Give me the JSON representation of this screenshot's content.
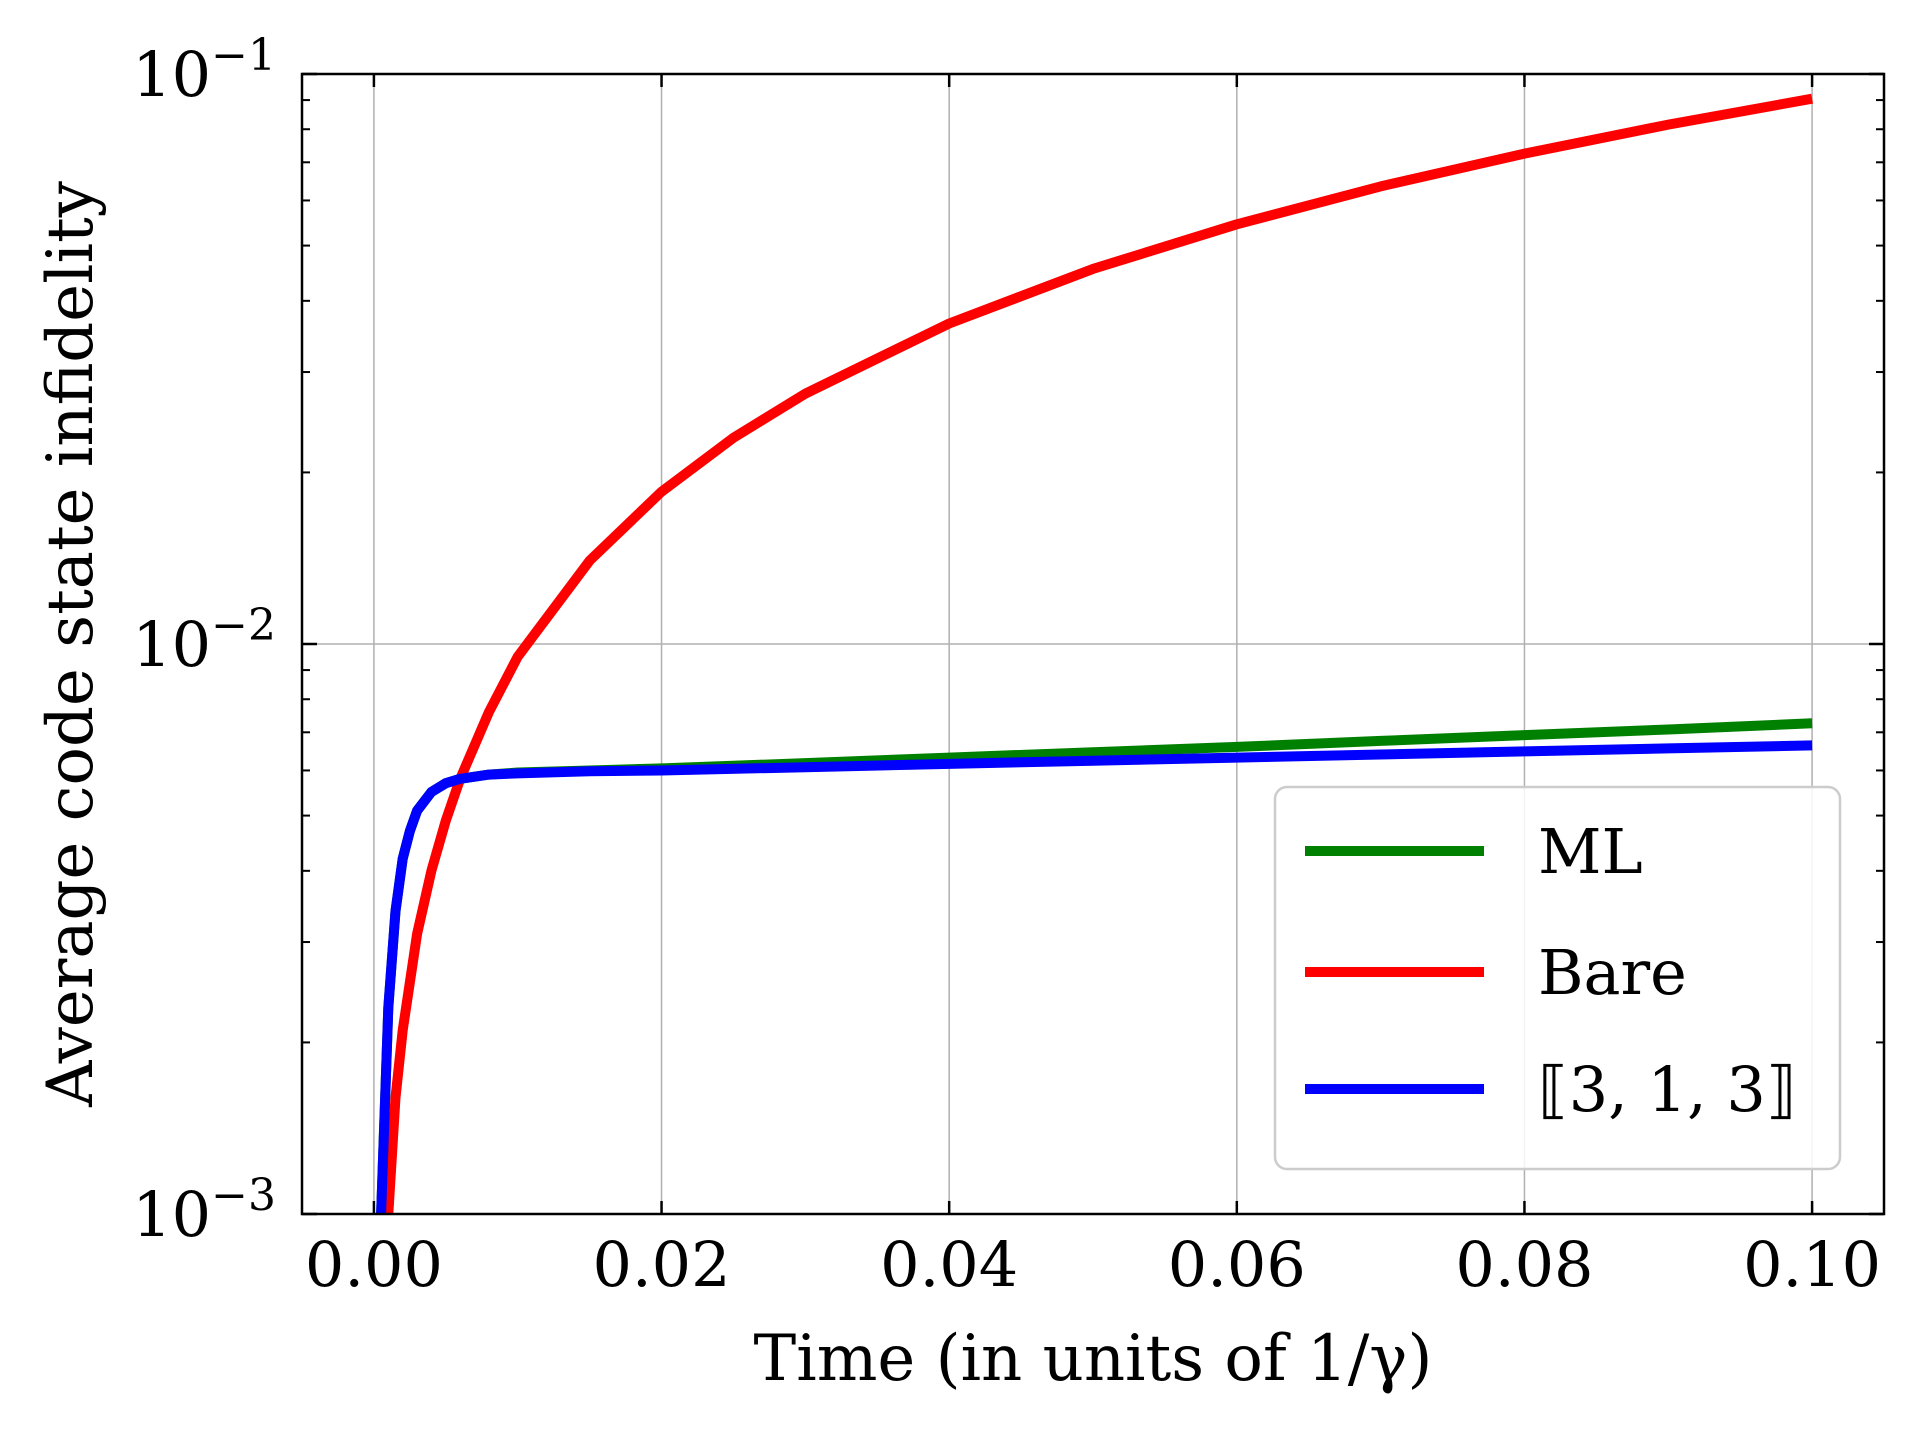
{
  "chart_data": {
    "type": "line",
    "xlabel": "Time (in units of 1/γ)",
    "ylabel": "Average code state infidelity",
    "xlim": [
      -0.005,
      0.105
    ],
    "ylim": [
      0.001,
      0.1
    ],
    "yscale": "log",
    "grid": true,
    "legend_position": "lower-right",
    "x_ticks": [
      {
        "value": 0.0,
        "label": "0.00"
      },
      {
        "value": 0.02,
        "label": "0.02"
      },
      {
        "value": 0.04,
        "label": "0.04"
      },
      {
        "value": 0.06,
        "label": "0.06"
      },
      {
        "value": 0.08,
        "label": "0.08"
      },
      {
        "value": 0.1,
        "label": "0.10"
      }
    ],
    "y_ticks": [
      {
        "value": 0.001,
        "base": "10",
        "exp": "−3"
      },
      {
        "value": 0.01,
        "base": "10",
        "exp": "−2"
      },
      {
        "value": 0.1,
        "base": "10",
        "exp": "−1"
      }
    ],
    "series": [
      {
        "name": "ML",
        "color": "#008000",
        "x": [
          0.0005,
          0.001,
          0.0015,
          0.002,
          0.0025,
          0.003,
          0.004,
          0.005,
          0.006,
          0.008,
          0.01,
          0.015,
          0.02,
          0.03,
          0.04,
          0.05,
          0.06,
          0.07,
          0.08,
          0.09,
          0.1
        ],
        "y": [
          0.001,
          0.0023,
          0.0034,
          0.0042,
          0.0047,
          0.0051,
          0.0055,
          0.0057,
          0.0058,
          0.0059,
          0.00595,
          0.006,
          0.00605,
          0.00618,
          0.00632,
          0.00646,
          0.0066,
          0.00676,
          0.00692,
          0.00708,
          0.00726
        ]
      },
      {
        "name": "Bare",
        "color": "#ff0000",
        "x": [
          0.001,
          0.0015,
          0.002,
          0.003,
          0.004,
          0.005,
          0.006,
          0.008,
          0.01,
          0.015,
          0.02,
          0.025,
          0.03,
          0.04,
          0.05,
          0.06,
          0.07,
          0.08,
          0.09,
          0.1
        ],
        "y": [
          0.001,
          0.0016,
          0.0021,
          0.0031,
          0.004,
          0.0049,
          0.0058,
          0.0076,
          0.0095,
          0.014,
          0.0185,
          0.023,
          0.0275,
          0.0365,
          0.0455,
          0.0545,
          0.0635,
          0.0725,
          0.0815,
          0.0905
        ]
      },
      {
        "name": "⟦3, 1, 3⟧",
        "color": "#0000ff",
        "x": [
          0.0005,
          0.001,
          0.0015,
          0.002,
          0.0025,
          0.003,
          0.004,
          0.005,
          0.006,
          0.008,
          0.01,
          0.015,
          0.02,
          0.03,
          0.04,
          0.05,
          0.06,
          0.07,
          0.08,
          0.09,
          0.1
        ],
        "y": [
          0.001,
          0.0023,
          0.0034,
          0.0042,
          0.0047,
          0.0051,
          0.0055,
          0.0057,
          0.0058,
          0.0059,
          0.00593,
          0.00598,
          0.006,
          0.00608,
          0.00616,
          0.00624,
          0.00632,
          0.0064,
          0.00648,
          0.00656,
          0.00664
        ]
      }
    ]
  }
}
